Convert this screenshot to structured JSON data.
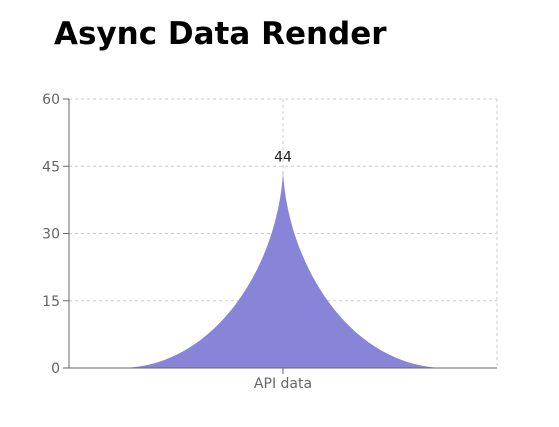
{
  "page": {
    "title": "Async Data Render"
  },
  "chart_data": {
    "type": "area",
    "categories": [
      "API data"
    ],
    "series": [
      {
        "values": [
          44
        ],
        "color": "#8884d8"
      }
    ],
    "yticks": [
      "0",
      "15",
      "30",
      "45",
      "60"
    ],
    "ylim": [
      0,
      60
    ],
    "data_labels": [
      "44"
    ],
    "grid": true,
    "xlabel": "",
    "ylabel": ""
  }
}
